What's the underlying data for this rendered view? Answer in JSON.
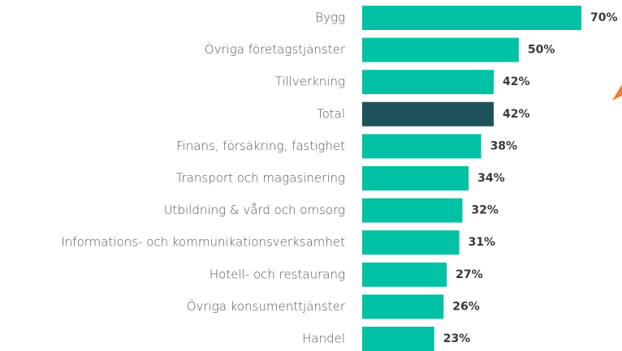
{
  "chart_data": {
    "type": "barh",
    "categories": [
      "Bygg",
      "Övriga företagstjänster",
      "Tillverkning",
      "Total",
      "Finans, försäkring, fastighet",
      "Transport och magasinering",
      "Utbildning & vård och omsorg",
      "Informations- och kommunikationsverksamhet",
      "Hotell- och restaurang",
      "Övriga konsumenttjänster",
      "Handel"
    ],
    "values": [
      70,
      50,
      42,
      42,
      38,
      34,
      32,
      31,
      27,
      26,
      23
    ],
    "value_labels": [
      "70%",
      "50%",
      "42%",
      "42%",
      "38%",
      "34%",
      "32%",
      "31%",
      "27%",
      "26%",
      "23%"
    ],
    "colors": [
      "#00c1a4",
      "#00c1a4",
      "#00c1a4",
      "#1d545c",
      "#00c1a4",
      "#00c1a4",
      "#00c1a4",
      "#00c1a4",
      "#00c1a4",
      "#00c1a4",
      "#00c1a4"
    ]
  }
}
